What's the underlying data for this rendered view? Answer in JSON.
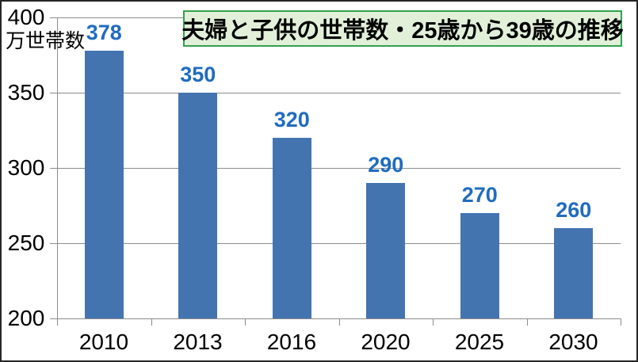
{
  "chart_data": {
    "type": "bar",
    "title": "夫婦と子供の世帯数・25歳から39歳の推移",
    "unit_label": "万世帯数",
    "categories": [
      "2010",
      "2013",
      "2016",
      "2020",
      "2025",
      "2030"
    ],
    "values": [
      378,
      350,
      320,
      290,
      270,
      260
    ],
    "y_ticks": [
      200,
      250,
      300,
      350,
      400
    ],
    "ylim": [
      200,
      400
    ],
    "grid": true,
    "legend": "none",
    "data_labels": true,
    "colors": {
      "bar": "#4374B0",
      "data_label": "#1F6CBF",
      "gridline": "#8C8C8C",
      "axis_line": "#8C8C8C",
      "axis_text": "#000000",
      "title_bg": "#E2F0D9",
      "title_border": "#31A24C",
      "title_text": "#000000",
      "chart_border": "#262626",
      "background": "#FFFFFF"
    }
  }
}
